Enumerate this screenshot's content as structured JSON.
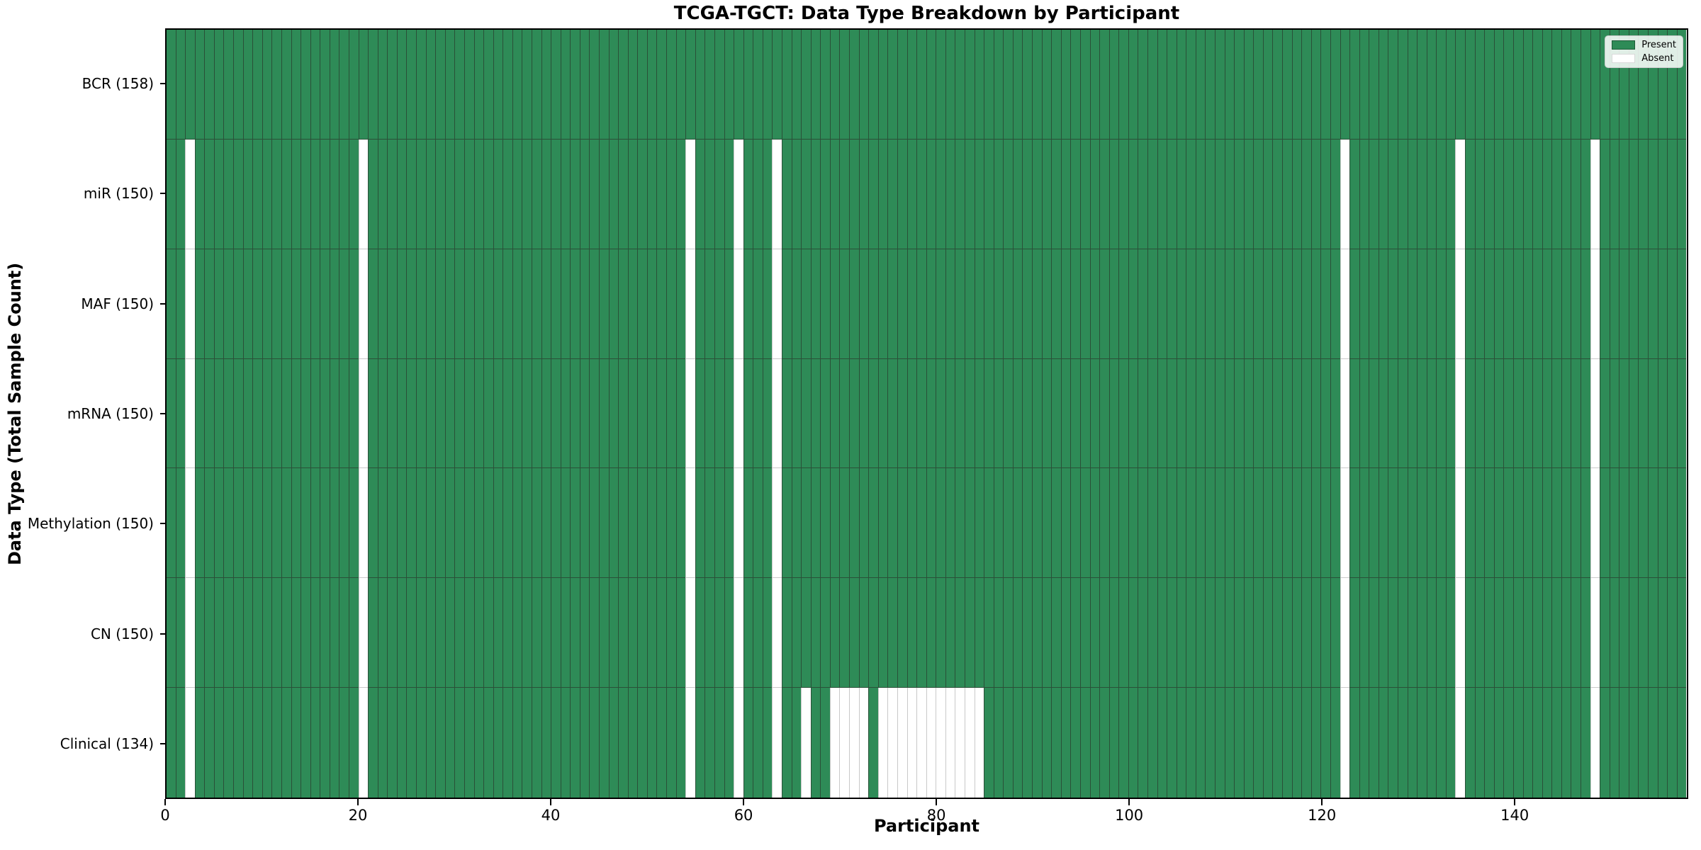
{
  "chart_data": {
    "type": "heatmap",
    "title": "TCGA-TGCT: Data Type Breakdown by Participant",
    "xlabel": "Participant",
    "ylabel": "Data Type (Total Sample Count)",
    "x_ticks": [
      0,
      20,
      40,
      60,
      80,
      100,
      120,
      140
    ],
    "x_range": [
      0,
      158
    ],
    "n_participants": 158,
    "grid": "cell-edges",
    "legend_position": "upper right",
    "colors": {
      "present": "#2e8b57",
      "absent": "#ffffff",
      "present_edge": "#2a5038",
      "absent_edge": "#c9c9c9",
      "frame": "#000000"
    },
    "legend": {
      "items": [
        {
          "label": "Present",
          "state": "present"
        },
        {
          "label": "Absent",
          "state": "absent"
        }
      ]
    },
    "rows": [
      {
        "label": "BCR (158)",
        "name": "BCR",
        "total": 158,
        "absent": []
      },
      {
        "label": "miR (150)",
        "name": "miR",
        "total": 150,
        "absent": [
          2,
          20,
          54,
          59,
          63,
          122,
          134,
          148
        ]
      },
      {
        "label": "MAF (150)",
        "name": "MAF",
        "total": 150,
        "absent": [
          2,
          20,
          54,
          59,
          63,
          122,
          134,
          148
        ]
      },
      {
        "label": "mRNA (150)",
        "name": "mRNA",
        "total": 150,
        "absent": [
          2,
          20,
          54,
          59,
          63,
          122,
          134,
          148
        ]
      },
      {
        "label": "Methylation (150)",
        "name": "Methylation",
        "total": 150,
        "absent": [
          2,
          20,
          54,
          59,
          63,
          122,
          134,
          148
        ]
      },
      {
        "label": "CN (150)",
        "name": "CN",
        "total": 150,
        "absent": [
          2,
          20,
          54,
          59,
          63,
          122,
          134,
          148
        ]
      },
      {
        "label": "Clinical (134)",
        "name": "Clinical",
        "total": 134,
        "absent": [
          2,
          20,
          54,
          59,
          63,
          66,
          69,
          70,
          71,
          72,
          74,
          75,
          76,
          77,
          78,
          79,
          80,
          81,
          82,
          83,
          84,
          122,
          134,
          148
        ]
      }
    ]
  }
}
